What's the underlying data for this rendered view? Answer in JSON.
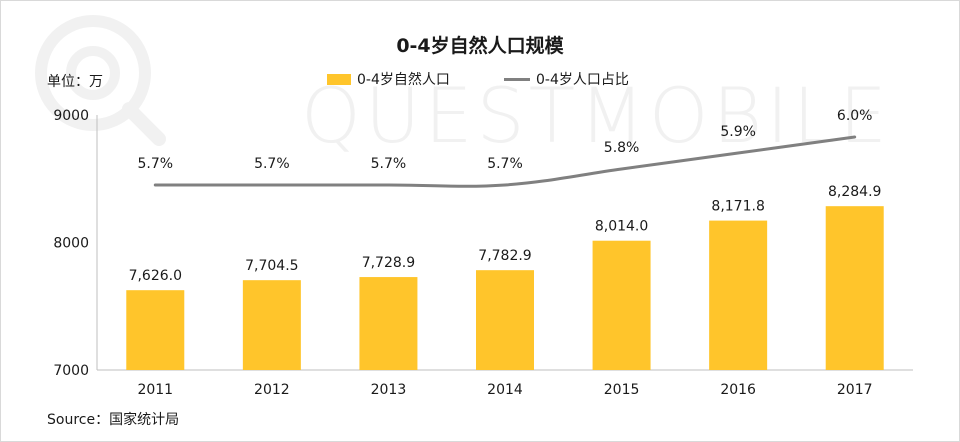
{
  "colors": {
    "bar": "#FFC52B",
    "line": "#808080",
    "axis": "#bfbfbf",
    "watermark": "#f1f1f1"
  },
  "watermark": {
    "text": "QUESTMOBILE"
  },
  "unit_label": "单位：万",
  "source_label": "Source：国家统计局",
  "chart_data": {
    "type": "bar",
    "title": "0-4岁自然人口规模",
    "categories": [
      "2011",
      "2012",
      "2013",
      "2014",
      "2015",
      "2016",
      "2017"
    ],
    "ylim": [
      7000,
      9000
    ],
    "yticks": [
      "9000",
      "8000",
      "7000"
    ],
    "legend_position": "top-center",
    "grid": false,
    "series": [
      {
        "name": "0-4岁自然人口",
        "type": "bar",
        "values": [
          7626.0,
          7704.5,
          7728.9,
          7782.9,
          8014.0,
          8171.8,
          8284.9
        ],
        "labels": [
          "7,626.0",
          "7,704.5",
          "7,728.9",
          "7,782.9",
          "8,014.0",
          "8,171.8",
          "8,284.9"
        ]
      },
      {
        "name": "0-4岁人口占比",
        "type": "line",
        "values": [
          5.7,
          5.7,
          5.7,
          5.7,
          5.8,
          5.9,
          6.0
        ],
        "labels": [
          "5.7%",
          "5.7%",
          "5.7%",
          "5.7%",
          "5.8%",
          "5.9%",
          "6.0%"
        ]
      }
    ]
  }
}
